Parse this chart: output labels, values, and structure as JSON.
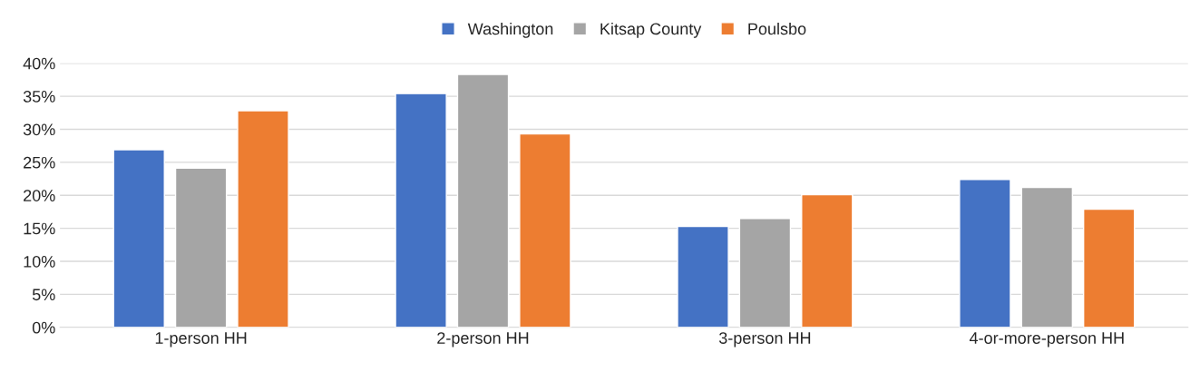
{
  "chart_data": {
    "type": "bar",
    "categories": [
      "1-person HH",
      "2-person HH",
      "3-person HH",
      "4-or-more-person HH"
    ],
    "series": [
      {
        "name": "Washington",
        "color": "#4472c4",
        "values": [
          26.9,
          35.4,
          15.3,
          22.4
        ]
      },
      {
        "name": "Kitsap County",
        "color": "#a5a5a5",
        "values": [
          24.1,
          38.3,
          16.5,
          21.2
        ]
      },
      {
        "name": "Poulsbo",
        "color": "#ed7d31",
        "values": [
          32.8,
          29.3,
          20.1,
          17.9
        ]
      }
    ],
    "ylim": [
      0,
      40
    ],
    "yticks": [
      {
        "value": 0,
        "label": "0%"
      },
      {
        "value": 5,
        "label": "5%"
      },
      {
        "value": 10,
        "label": "10%"
      },
      {
        "value": 15,
        "label": "15%"
      },
      {
        "value": 20,
        "label": "20%"
      },
      {
        "value": 25,
        "label": "25%"
      },
      {
        "value": 30,
        "label": "30%"
      },
      {
        "value": 35,
        "label": "35%"
      },
      {
        "value": 40,
        "label": "40%"
      }
    ],
    "grid": "y",
    "legend": "top"
  }
}
